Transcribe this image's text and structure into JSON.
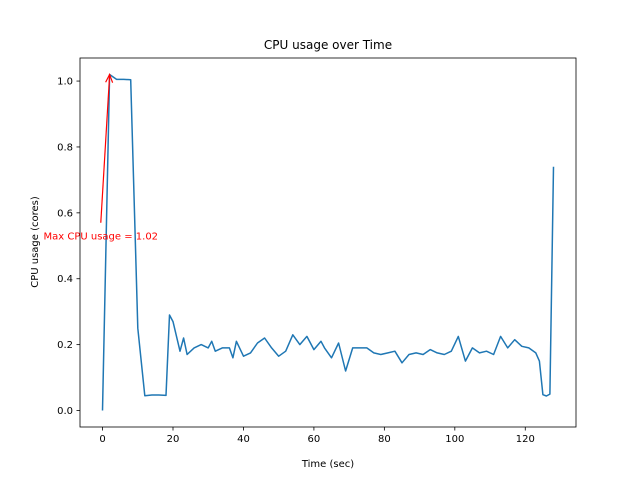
{
  "chart_data": {
    "type": "line",
    "title": "CPU usage over Time",
    "xlabel": "Time (sec)",
    "ylabel": "CPU usage (cores)",
    "xlim": [
      -6.4,
      134.4
    ],
    "ylim": [
      -0.05,
      1.07
    ],
    "xticks": [
      0,
      20,
      40,
      60,
      80,
      100,
      120
    ],
    "xtick_labels": [
      "0",
      "20",
      "40",
      "60",
      "80",
      "100",
      "120"
    ],
    "yticks": [
      0.0,
      0.2,
      0.4,
      0.6,
      0.8,
      1.0
    ],
    "ytick_labels": [
      "0.0",
      "0.2",
      "0.4",
      "0.6",
      "0.8",
      "1.0"
    ],
    "grid": false,
    "line_color": "#1f77b4",
    "annotation": {
      "text": "Max CPU usage = 1.02",
      "color": "#ff0000",
      "point": [
        2,
        1.02
      ],
      "text_pos": [
        -0.5,
        0.57
      ]
    },
    "series": [
      {
        "x": [
          0,
          2,
          4,
          6,
          8,
          10,
          12,
          14,
          16,
          18,
          19,
          20,
          22,
          23,
          24,
          26,
          28,
          30,
          31,
          32,
          34,
          36,
          37,
          38,
          40,
          42,
          44,
          46,
          48,
          50,
          52,
          54,
          56,
          58,
          60,
          62,
          63,
          65,
          67,
          69,
          71,
          73,
          75,
          77,
          79,
          81,
          83,
          85,
          87,
          89,
          91,
          93,
          95,
          97,
          99,
          101,
          103,
          105,
          107,
          109,
          111,
          113,
          115,
          117,
          119,
          121,
          123,
          124,
          125,
          126,
          127,
          128
        ],
        "values": [
          0.0,
          1.02,
          1.005,
          1.005,
          1.004,
          0.25,
          0.045,
          0.047,
          0.047,
          0.046,
          0.29,
          0.27,
          0.18,
          0.22,
          0.17,
          0.19,
          0.2,
          0.19,
          0.21,
          0.18,
          0.19,
          0.19,
          0.16,
          0.21,
          0.165,
          0.175,
          0.205,
          0.22,
          0.19,
          0.165,
          0.18,
          0.23,
          0.2,
          0.225,
          0.185,
          0.21,
          0.19,
          0.16,
          0.205,
          0.12,
          0.19,
          0.19,
          0.19,
          0.175,
          0.17,
          0.175,
          0.18,
          0.145,
          0.17,
          0.175,
          0.17,
          0.185,
          0.175,
          0.17,
          0.18,
          0.225,
          0.15,
          0.19,
          0.175,
          0.18,
          0.17,
          0.225,
          0.19,
          0.215,
          0.195,
          0.19,
          0.175,
          0.15,
          0.048,
          0.044,
          0.05,
          0.74
        ]
      }
    ]
  }
}
